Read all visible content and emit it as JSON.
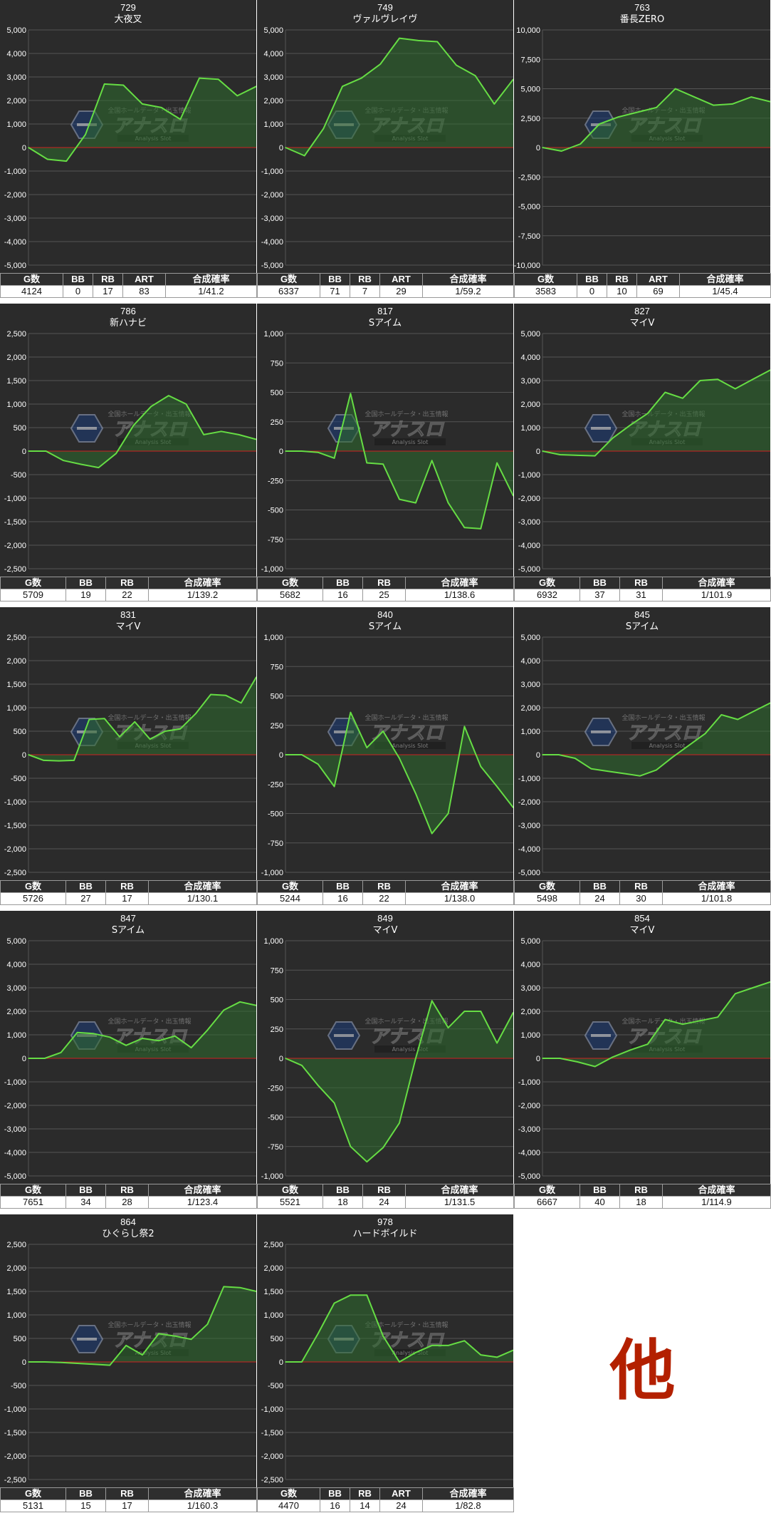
{
  "colors": {
    "plot_bg": "#2b2b2b",
    "grid": "#555555",
    "line": "#66dd44",
    "fill": "#2d6b2d",
    "zero_line": "#cc2222",
    "text": "#ffffff",
    "other_mark": "#b32000"
  },
  "watermark": {
    "lines": [
      "全国ホールデータ・出玉情報",
      "アナスロ",
      "Analysis Slot"
    ],
    "icon": "hexagon-logo-icon"
  },
  "columns_full": [
    "G数",
    "BB",
    "RB",
    "ART",
    "合成確率"
  ],
  "columns_short": [
    "G数",
    "BB",
    "RB",
    "合成確率"
  ],
  "other_label": "他",
  "chart_data": [
    {
      "type": "area",
      "title": "729",
      "subtitle": "大夜叉",
      "ylim": [
        -5000,
        5000
      ],
      "yticks": [
        5000,
        4000,
        3000,
        2000,
        1000,
        0,
        -1000,
        -2000,
        -3000,
        -4000,
        -5000
      ],
      "y": [
        0,
        -500,
        -580,
        550,
        2700,
        2650,
        1850,
        1700,
        1200,
        2950,
        2900,
        2200,
        2600
      ],
      "stats": {
        "g": "4124",
        "bb": "0",
        "rb": "17",
        "art": "83",
        "rate": "1/41.2"
      }
    },
    {
      "type": "area",
      "title": "749",
      "subtitle": "ヴァルヴレイヴ",
      "ylim": [
        -5000,
        5000
      ],
      "yticks": [
        5000,
        4000,
        3000,
        2000,
        1000,
        0,
        -1000,
        -2000,
        -3000,
        -4000,
        -5000
      ],
      "y": [
        0,
        -350,
        800,
        2600,
        2950,
        3550,
        4650,
        4550,
        4500,
        3500,
        3050,
        1850,
        2900
      ],
      "stats": {
        "g": "6337",
        "bb": "71",
        "rb": "7",
        "art": "29",
        "rate": "1/59.2"
      }
    },
    {
      "type": "area",
      "title": "763",
      "subtitle": "番長ZERO",
      "ylim": [
        -10000,
        10000
      ],
      "yticks": [
        10000,
        7500,
        5000,
        2500,
        0,
        -2500,
        -5000,
        -7500,
        -10000
      ],
      "y": [
        0,
        -300,
        300,
        2000,
        2600,
        3000,
        3400,
        5000,
        4300,
        3600,
        3700,
        4300,
        3900
      ],
      "stats": {
        "g": "3583",
        "bb": "0",
        "rb": "10",
        "art": "69",
        "rate": "1/45.4"
      }
    },
    {
      "type": "area",
      "title": "786",
      "subtitle": "新ハナビ",
      "ylim": [
        -2500,
        2500
      ],
      "yticks": [
        2500,
        2000,
        1500,
        1000,
        500,
        0,
        -500,
        -1000,
        -1500,
        -2000,
        -2500
      ],
      "y": [
        0,
        0,
        -200,
        -280,
        -350,
        -50,
        550,
        950,
        1180,
        1000,
        350,
        420,
        350,
        250
      ],
      "stats": {
        "g": "5709",
        "bb": "19",
        "rb": "22",
        "rate": "1/139.2"
      }
    },
    {
      "type": "area",
      "title": "817",
      "subtitle": "Sアイム",
      "ylim": [
        -1000,
        1000
      ],
      "yticks": [
        1000,
        750,
        500,
        250,
        0,
        -250,
        -500,
        -750,
        -1000
      ],
      "y": [
        0,
        0,
        -10,
        -60,
        490,
        -100,
        -110,
        -410,
        -440,
        -80,
        -440,
        -650,
        -660,
        -100,
        -380
      ],
      "stats": {
        "g": "5682",
        "bb": "16",
        "rb": "25",
        "rate": "1/138.6"
      }
    },
    {
      "type": "area",
      "title": "827",
      "subtitle": "マイV",
      "ylim": [
        -5000,
        5000
      ],
      "yticks": [
        5000,
        4000,
        3000,
        2000,
        1000,
        0,
        -1000,
        -2000,
        -3000,
        -4000,
        -5000
      ],
      "y": [
        0,
        -150,
        -180,
        -200,
        550,
        1100,
        1600,
        2500,
        2250,
        3000,
        3050,
        2650,
        3050,
        3450
      ],
      "stats": {
        "g": "6932",
        "bb": "37",
        "rb": "31",
        "rate": "1/101.9"
      }
    },
    {
      "type": "area",
      "title": "831",
      "subtitle": "マイV",
      "ylim": [
        -2500,
        2500
      ],
      "yticks": [
        2500,
        2000,
        1500,
        1000,
        500,
        0,
        -500,
        -1000,
        -1500,
        -2000,
        -2500
      ],
      "y": [
        0,
        -120,
        -130,
        -120,
        750,
        770,
        380,
        700,
        330,
        500,
        550,
        870,
        1280,
        1260,
        1100,
        1650
      ],
      "stats": {
        "g": "5726",
        "bb": "27",
        "rb": "17",
        "rate": "1/130.1"
      }
    },
    {
      "type": "area",
      "title": "840",
      "subtitle": "Sアイム",
      "ylim": [
        -1000,
        1000
      ],
      "yticks": [
        1000,
        750,
        500,
        250,
        0,
        -250,
        -500,
        -750,
        -1000
      ],
      "y": [
        0,
        0,
        -80,
        -270,
        360,
        60,
        200,
        -30,
        -330,
        -670,
        -500,
        240,
        -100,
        -270,
        -450
      ],
      "stats": {
        "g": "5244",
        "bb": "16",
        "rb": "22",
        "rate": "1/138.0"
      }
    },
    {
      "type": "area",
      "title": "845",
      "subtitle": "Sアイム",
      "ylim": [
        -5000,
        5000
      ],
      "yticks": [
        5000,
        4000,
        3000,
        2000,
        1000,
        0,
        -1000,
        -2000,
        -3000,
        -4000,
        -5000
      ],
      "y": [
        0,
        0,
        -150,
        -600,
        -700,
        -800,
        -900,
        -650,
        -100,
        400,
        900,
        1700,
        1500,
        1850,
        2200
      ],
      "stats": {
        "g": "5498",
        "bb": "24",
        "rb": "30",
        "rate": "1/101.8"
      }
    },
    {
      "type": "area",
      "title": "847",
      "subtitle": "Sアイム",
      "ylim": [
        -5000,
        5000
      ],
      "yticks": [
        5000,
        4000,
        3000,
        2000,
        1000,
        0,
        -1000,
        -2000,
        -3000,
        -4000,
        -5000
      ],
      "y": [
        0,
        0,
        250,
        1100,
        1050,
        900,
        550,
        850,
        750,
        950,
        450,
        1200,
        2050,
        2400,
        2250
      ],
      "stats": {
        "g": "7651",
        "bb": "34",
        "rb": "28",
        "rate": "1/123.4"
      }
    },
    {
      "type": "area",
      "title": "849",
      "subtitle": "マイV",
      "ylim": [
        -1000,
        1000
      ],
      "yticks": [
        1000,
        750,
        500,
        250,
        0,
        -250,
        -500,
        -750,
        -1000
      ],
      "y": [
        0,
        -60,
        -230,
        -380,
        -750,
        -880,
        -760,
        -550,
        0,
        490,
        260,
        400,
        400,
        130,
        390
      ],
      "stats": {
        "g": "5521",
        "bb": "18",
        "rb": "24",
        "rate": "1/131.5"
      }
    },
    {
      "type": "area",
      "title": "854",
      "subtitle": "マイV",
      "ylim": [
        -5000,
        5000
      ],
      "yticks": [
        5000,
        4000,
        3000,
        2000,
        1000,
        0,
        -1000,
        -2000,
        -3000,
        -4000,
        -5000
      ],
      "y": [
        0,
        0,
        -150,
        -350,
        50,
        350,
        600,
        1650,
        1450,
        1600,
        1750,
        2750,
        3000,
        3250
      ],
      "stats": {
        "g": "6667",
        "bb": "40",
        "rb": "18",
        "rate": "1/114.9"
      }
    },
    {
      "type": "area",
      "title": "864",
      "subtitle": "ひぐらし祭2",
      "ylim": [
        -2500,
        2500
      ],
      "yticks": [
        2500,
        2000,
        1500,
        1000,
        500,
        0,
        -500,
        -1000,
        -1500,
        -2000,
        -2500
      ],
      "y": [
        0,
        0,
        -10,
        -30,
        -50,
        -70,
        350,
        150,
        600,
        550,
        480,
        800,
        1600,
        1580,
        1500
      ],
      "stats": {
        "g": "5131",
        "bb": "15",
        "rb": "17",
        "rate": "1/160.3"
      }
    },
    {
      "type": "area",
      "title": "978",
      "subtitle": "ハードボイルド",
      "ylim": [
        -2500,
        2500
      ],
      "yticks": [
        2500,
        2000,
        1500,
        1000,
        500,
        0,
        -500,
        -1000,
        -1500,
        -2000,
        -2500
      ],
      "y": [
        0,
        0,
        600,
        1250,
        1420,
        1420,
        550,
        0,
        200,
        350,
        350,
        450,
        150,
        100,
        250
      ],
      "stats": {
        "g": "4470",
        "bb": "16",
        "rb": "14",
        "art": "24",
        "rate": "1/82.8"
      }
    }
  ]
}
